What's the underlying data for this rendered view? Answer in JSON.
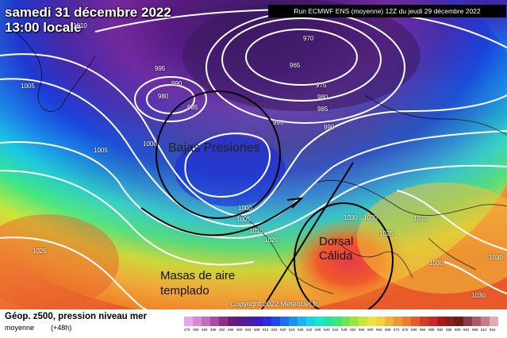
{
  "header": {
    "date": "samedi 31 décembre 2022",
    "time": "13:00 locale",
    "run": "Run ECMWF ENS (moyenne) 12Z du jeudi 29 décembre 2022"
  },
  "isobars": [
    "1010",
    "995",
    "990",
    "980",
    "985",
    "970",
    "965",
    "975",
    "980",
    "985",
    "990",
    "995",
    "1000",
    "1005",
    "1005",
    "1000",
    "1005",
    "1010",
    "1020",
    "1025",
    "1030",
    "1030",
    "1025",
    "1030",
    "1030",
    "1030",
    "1025"
  ],
  "annotations": {
    "bajas": "Bajas Presiones",
    "dorsal_line1": "Dorsal",
    "dorsal_line2": "Cálida",
    "masas_line1": "Masas de aire",
    "masas_line2": "templado"
  },
  "copyright": "Copyright 2022 Meteociel.fr",
  "legend": {
    "title": "Géop. z500, pression niveau mer",
    "subtitle": "moyenne",
    "lead": "(+48h)",
    "scale_labels": [
      "476",
      "480",
      "484",
      "488",
      "492",
      "496",
      "500",
      "504",
      "508",
      "512",
      "516",
      "520",
      "524",
      "528",
      "532",
      "536",
      "540",
      "544",
      "548",
      "552",
      "556",
      "560",
      "564",
      "568",
      "572",
      "576",
      "580",
      "584",
      "588",
      "592",
      "596",
      "600",
      "604",
      "608",
      "612",
      "616"
    ],
    "scale_colors": [
      "#e6a8e6",
      "#d68ad6",
      "#c46cc4",
      "#a84aa8",
      "#8c308c",
      "#6c1c7c",
      "#5a1a8c",
      "#4a1aa8",
      "#3a1ac8",
      "#2a2ae0",
      "#1a4ae8",
      "#1a6ef0",
      "#1a92f0",
      "#1ab4f0",
      "#1ad2e8",
      "#1ae6c8",
      "#1ae6a0",
      "#3ae678",
      "#6ae650",
      "#9ae63a",
      "#c8e63a",
      "#e8e63a",
      "#f0d23a",
      "#f0b43a",
      "#f0963a",
      "#f07a2a",
      "#e85a2a",
      "#d83a2a",
      "#c82a2a",
      "#a81a1a",
      "#8c1a1a",
      "#6c1a1a",
      "#8c3a4a",
      "#a85a6a",
      "#c87a8a",
      "#e8a8b0"
    ]
  },
  "colors": {
    "low_core": "#2a1a6c",
    "warm_core": "#e83a4a"
  }
}
